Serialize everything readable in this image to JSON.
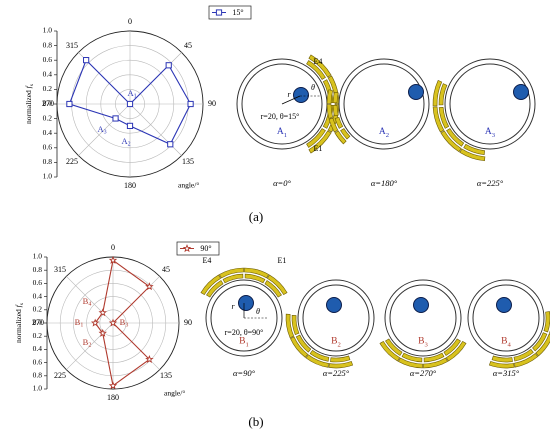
{
  "panels": [
    {
      "label": "(a)",
      "label_letter": "a",
      "polar": {
        "type": "polar-line",
        "legend": "15°",
        "series_color": "#2b35b5",
        "marker": "square",
        "radial_ticks": [
          "0.0",
          "0.2",
          "0.4",
          "0.6",
          "0.8",
          "1.0"
        ],
        "radial_axis_label": "normalized",
        "radial_axis_sub": "f",
        "radial_axis_sub2": "s",
        "angle_ticks": [
          "0",
          "45",
          "90",
          "135",
          "180",
          "225",
          "270",
          "315"
        ],
        "angle_axis_label": "angle/°",
        "angles": [
          0,
          45,
          90,
          135,
          180,
          225,
          270,
          315
        ],
        "values": [
          0.0,
          0.75,
          0.83,
          0.78,
          0.3,
          0.28,
          0.83,
          0.85
        ],
        "annotations": [
          {
            "letter": "A",
            "sub": "1"
          },
          {
            "letter": "A",
            "sub": "3"
          },
          {
            "letter": "A",
            "sub": "2"
          }
        ]
      },
      "diagrams": [
        {
          "name": "A",
          "sub": "1",
          "alpha": "α=0°",
          "arc_labels": [
            "E4",
            "E1"
          ],
          "r_label": "r",
          "theta_label": "θ",
          "params": "r=20, θ=15°"
        },
        {
          "name": "A",
          "sub": "2",
          "alpha": "α=180°"
        },
        {
          "name": "A",
          "sub": "3",
          "alpha": "α=225°"
        }
      ]
    },
    {
      "label": "(b)",
      "label_letter": "b",
      "polar": {
        "type": "polar-line",
        "legend": "90°",
        "series_color": "#b03a2e",
        "marker": "star",
        "radial_ticks": [
          "0.0",
          "0.2",
          "0.4",
          "0.6",
          "0.8",
          "1.0"
        ],
        "radial_axis_label": "normalized",
        "radial_axis_sub": "f",
        "radial_axis_sub2": "s",
        "angle_ticks": [
          "0",
          "45",
          "90",
          "135",
          "180",
          "225",
          "270",
          "315"
        ],
        "angle_axis_label": "angle/°",
        "angles": [
          0,
          45,
          90,
          135,
          180,
          225,
          270,
          315
        ],
        "values": [
          0.95,
          0.78,
          0.0,
          0.78,
          0.95,
          0.22,
          0.27,
          0.22
        ],
        "annotations": [
          {
            "letter": "B",
            "sub": "4"
          },
          {
            "letter": "B",
            "sub": "1"
          },
          {
            "letter": "B",
            "sub": "3"
          },
          {
            "letter": "B",
            "sub": "2"
          }
        ]
      },
      "diagrams": [
        {
          "name": "B",
          "sub": "1",
          "alpha": "α=90°",
          "arc_labels": [
            "E4",
            "E1"
          ],
          "r_label": "r",
          "theta_label": "θ",
          "params": "r=20, θ=90°"
        },
        {
          "name": "B",
          "sub": "2",
          "alpha": "α=225°"
        },
        {
          "name": "B",
          "sub": "3",
          "alpha": "α=270°"
        },
        {
          "name": "B",
          "sub": "4",
          "alpha": "α=315°"
        }
      ]
    }
  ],
  "colors": {
    "arc_fill": "#d8c21e",
    "arc_stroke": "#6b5a00",
    "ball_fill": "#1f5cae",
    "ball_stroke": "#0c1d4a",
    "ring": "#333333",
    "grid": "#b8b8b8",
    "label_blue": "#2b35b5",
    "label_red": "#b03a2e"
  }
}
